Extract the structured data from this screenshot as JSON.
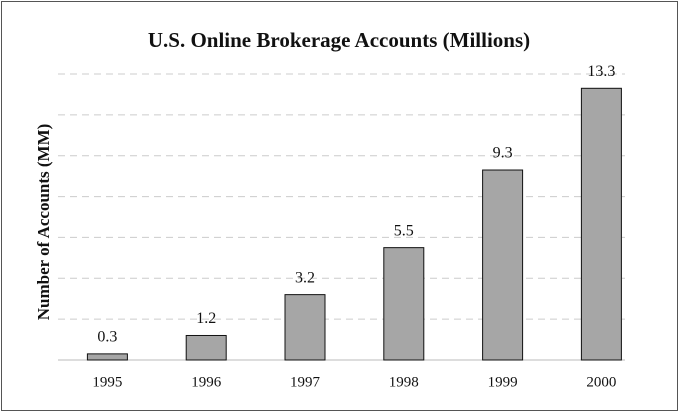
{
  "chart_data": {
    "type": "bar",
    "title": "U.S. Online Brokerage Accounts (Millions)",
    "y_label": "Number of Accounts (MM)",
    "categories": [
      "1995",
      "1996",
      "1997",
      "1998",
      "1999",
      "2000"
    ],
    "values": [
      0.3,
      1.2,
      3.2,
      5.5,
      9.3,
      13.3
    ],
    "color": "#a6a6a6",
    "ylim": [
      0,
      14
    ],
    "yticks": [
      0,
      2,
      4,
      6,
      8,
      10,
      12,
      14
    ],
    "show_ytick_labels": false,
    "grid": true
  }
}
